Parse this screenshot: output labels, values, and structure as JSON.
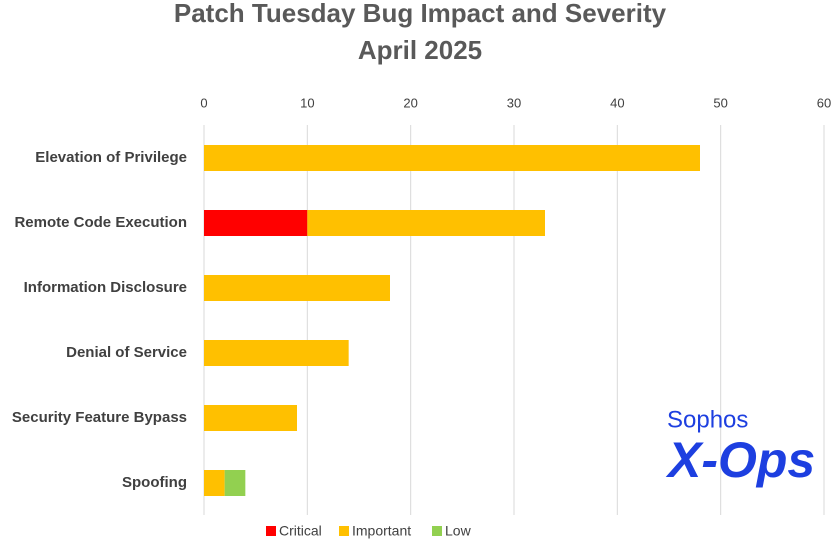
{
  "chart_data": {
    "type": "stacked-bar-horizontal",
    "title": "Patch Tuesday Bug Impact and Severity",
    "subtitle": "April 2025",
    "categories": [
      "Elevation of Privilege",
      "Remote Code Execution",
      "Information Disclosure",
      "Denial of Service",
      "Security Feature Bypass",
      "Spoofing"
    ],
    "series": [
      {
        "name": "Critical",
        "color": "#ff0000",
        "values": [
          null,
          10,
          null,
          null,
          null,
          null
        ]
      },
      {
        "name": "Important",
        "color": "#ffc000",
        "values": [
          48,
          23,
          18,
          14,
          9,
          2
        ]
      },
      {
        "name": "Low",
        "color": "#92d050",
        "values": [
          null,
          null,
          null,
          null,
          null,
          2
        ]
      }
    ],
    "xlim": [
      0,
      60
    ],
    "xticks": [
      0,
      10,
      20,
      30,
      40,
      50,
      60
    ],
    "grid": true,
    "legend": "bottom",
    "logo": {
      "line1": "Sophos",
      "line2": "X-Ops",
      "color": "#1d3fe0"
    }
  }
}
